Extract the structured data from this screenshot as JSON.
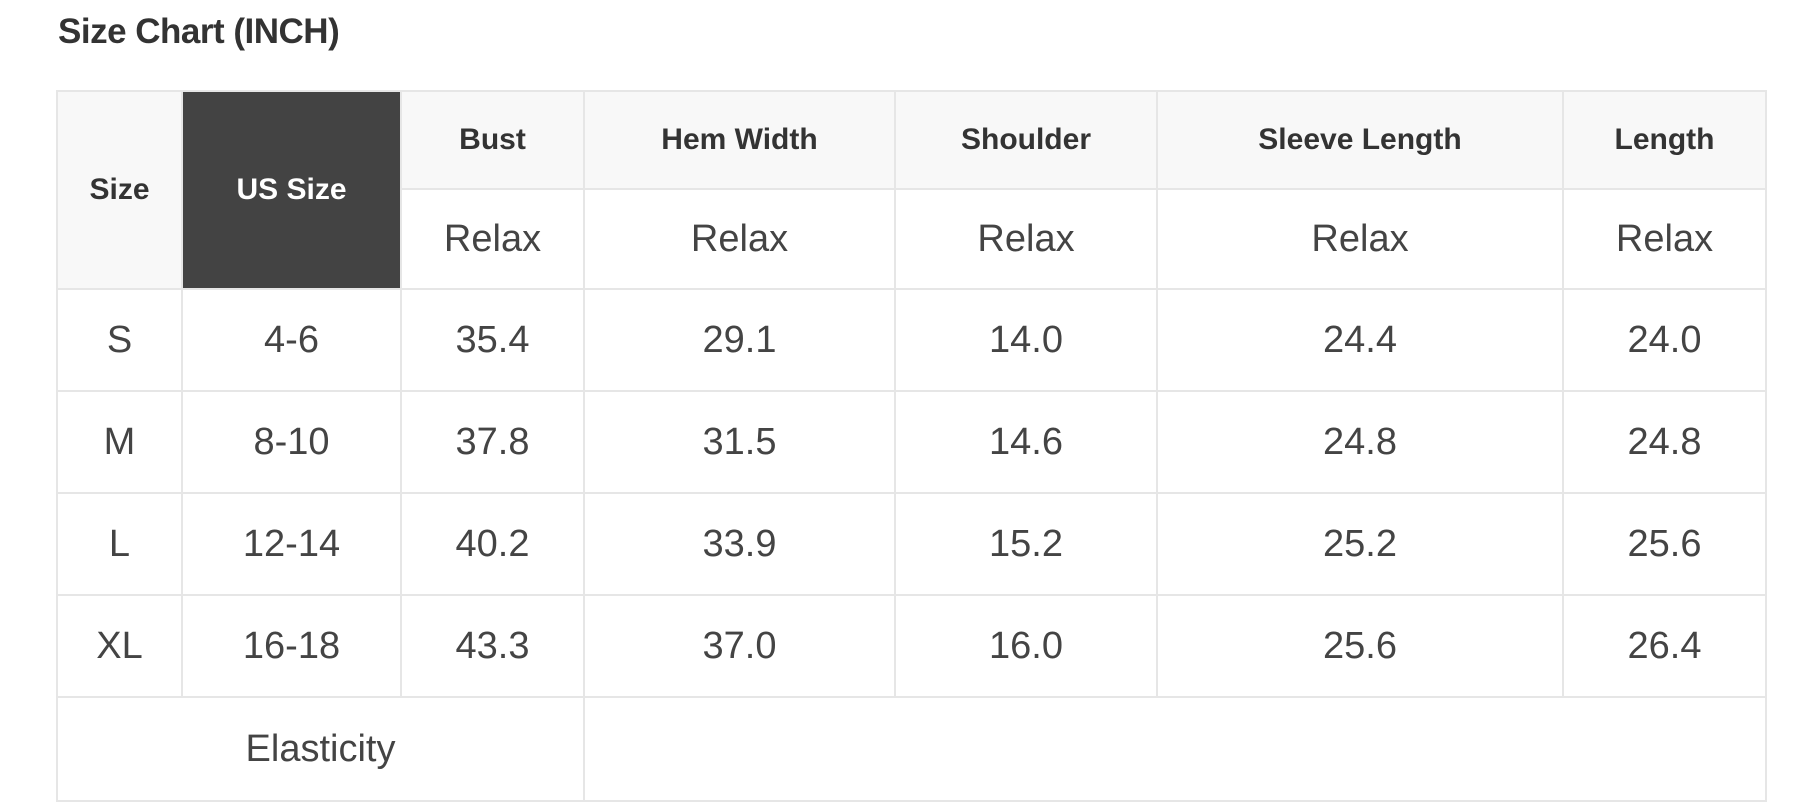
{
  "title": "Size Chart (INCH)",
  "colors": {
    "us_size_header_bg": "#434343",
    "header_bg": "#f8f8f8",
    "border": "#e6e6e6",
    "text": "#333333"
  },
  "table": {
    "headers": [
      "Size",
      "US Size",
      "Bust",
      "Hem Width",
      "Shoulder",
      "Sleeve Length",
      "Length"
    ],
    "subheaders": [
      "Relax",
      "Relax",
      "Relax",
      "Relax",
      "Relax"
    ],
    "rows": [
      [
        "S",
        "4-6",
        "35.4",
        "29.1",
        "14.0",
        "24.4",
        "24.0"
      ],
      [
        "M",
        "8-10",
        "37.8",
        "31.5",
        "14.6",
        "24.8",
        "24.8"
      ],
      [
        "L",
        "12-14",
        "40.2",
        "33.9",
        "15.2",
        "25.2",
        "25.6"
      ],
      [
        "XL",
        "16-18",
        "43.3",
        "37.0",
        "16.0",
        "25.6",
        "26.4"
      ]
    ],
    "footer_label": "Elasticity",
    "footer_value": ""
  }
}
